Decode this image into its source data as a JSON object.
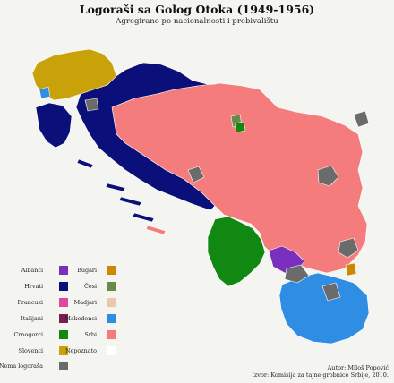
{
  "title": "Logoraši sa Golog Otoka (1949-1956)",
  "subtitle": "Agregirano po nacionalnosti i prebivalištu",
  "legend": {
    "col1": [
      {
        "label": "Albanci",
        "color": "#7b2fbe"
      },
      {
        "label": "Hrvati",
        "color": "#0a0f7a"
      },
      {
        "label": "Francuzi",
        "color": "#e0479e"
      },
      {
        "label": "Italijani",
        "color": "#7a1d4f"
      },
      {
        "label": "Crnogorci",
        "color": "#118811"
      },
      {
        "label": "Slovenci",
        "color": "#c9a20a"
      },
      {
        "label": "Nema logoraša",
        "color": "#6b6b6b"
      }
    ],
    "col2": [
      {
        "label": "Bugari",
        "color": "#cc8800"
      },
      {
        "label": "Česi",
        "color": "#6a8a4a"
      },
      {
        "label": "Madjari",
        "color": "#eec6a8"
      },
      {
        "label": "Makedonci",
        "color": "#2f8de4"
      },
      {
        "label": "Srbi",
        "color": "#f47c7c"
      },
      {
        "label": "Nepoznato",
        "color": "#ffffff"
      }
    ]
  },
  "credits": {
    "author": "Autor: Miloš Popović",
    "source": "Izvor: Komisija za tajne grobnice Srbije, 2010."
  },
  "map_colors": {
    "srbi": "#f47c7c",
    "hrvati": "#0a0f7a",
    "slovenci": "#c9a20a",
    "crnogorci": "#118811",
    "makedonci": "#2f8de4",
    "albanci": "#7b2fbe",
    "nema": "#6b6b6b",
    "border": "#ffffff"
  }
}
